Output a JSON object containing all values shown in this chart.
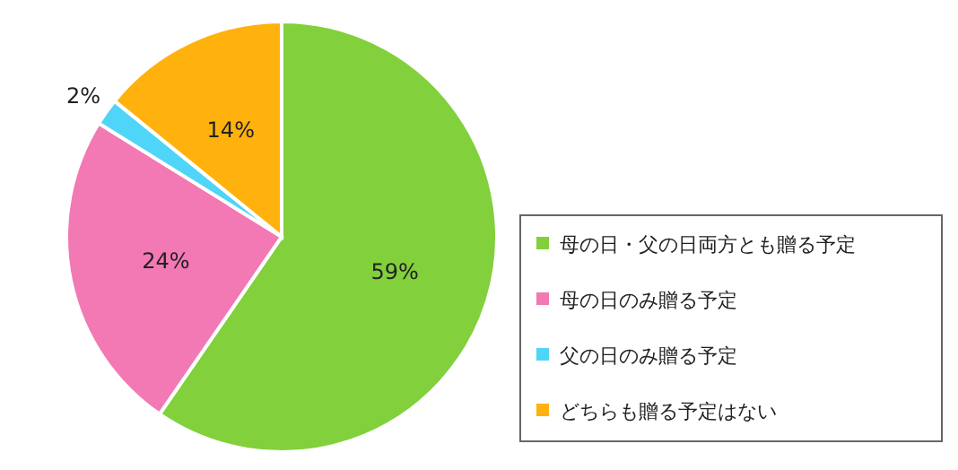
{
  "chart_data": {
    "type": "pie",
    "categories": [
      "母の日・父の日両方とも贈る予定",
      "母の日のみ贈る予定",
      "父の日のみ贈る予定",
      "どちらも贈る予定はない"
    ],
    "values": [
      59,
      24,
      2,
      14
    ],
    "colors": [
      "#82d03c",
      "#f279b4",
      "#4fd5f7",
      "#ffb20d"
    ],
    "value_labels": [
      "59%",
      "24%",
      "2%",
      "14%"
    ],
    "legend": "right"
  }
}
